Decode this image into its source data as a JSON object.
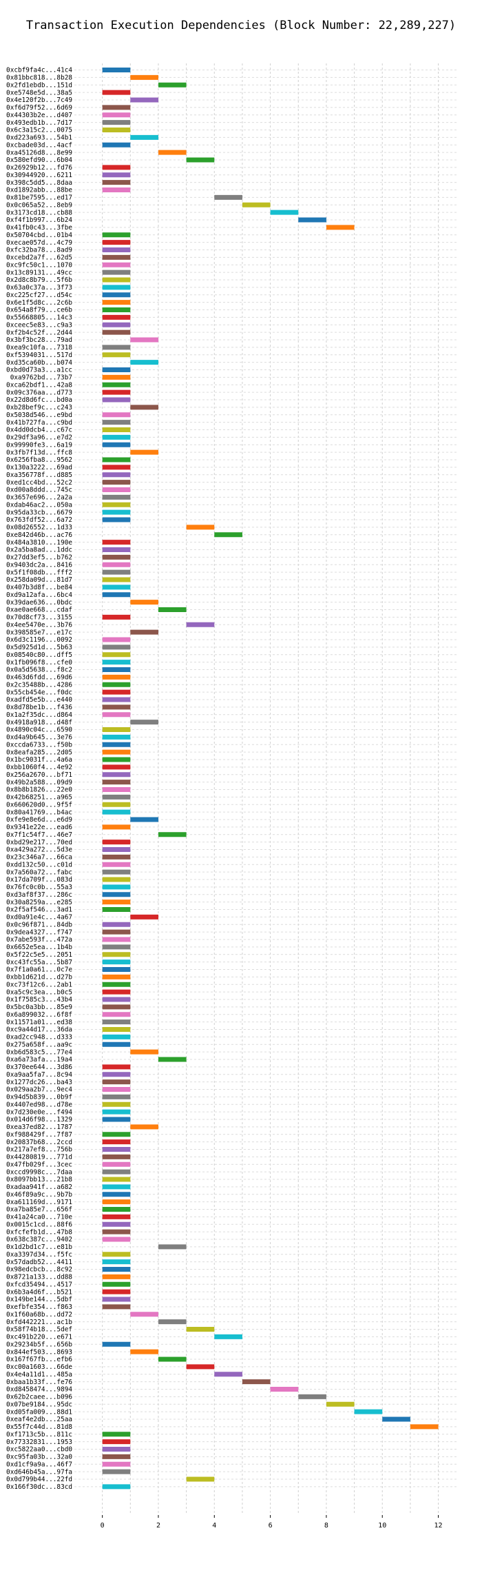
{
  "chart_data": {
    "type": "bar",
    "orientation": "horizontal",
    "title": "Transaction Execution Dependencies (Block Number: 22,289,227)",
    "xlabel": "",
    "ylabel": "",
    "xlim": [
      -1,
      12.7
    ],
    "xticks": [
      0,
      2,
      4,
      6,
      8,
      10,
      12
    ],
    "grid": true,
    "legend": "none",
    "palette": [
      "#1f77b4",
      "#ff7f0e",
      "#2ca02c",
      "#d62728",
      "#9467bd",
      "#8c564b",
      "#e377c2",
      "#7f7f7f",
      "#bcbd22",
      "#17becf"
    ],
    "rows": [
      {
        "label": "0xcbf9fa4c...41c4",
        "start": 0
      },
      {
        "label": "0x81bbc818...8b28",
        "start": 1
      },
      {
        "label": "0x2fd1ebdb...151d",
        "start": 2
      },
      {
        "label": "0xe5748e5d...38a5",
        "start": 0
      },
      {
        "label": "0x4e120f2b...7c49",
        "start": 1
      },
      {
        "label": "0xf6d79f52...6d69",
        "start": 0
      },
      {
        "label": "0x44303b2e...d407",
        "start": 0
      },
      {
        "label": "0x493edb1b...7d17",
        "start": 0
      },
      {
        "label": "0x6c3a15c2...0075",
        "start": 0
      },
      {
        "label": "0xd223a693...54b1",
        "start": 1
      },
      {
        "label": "0xcbade03d...4acf",
        "start": 0
      },
      {
        "label": "0xa45126d8...8e99",
        "start": 2
      },
      {
        "label": "0x580efd90...6b04",
        "start": 3
      },
      {
        "label": "0x26929b12...fd76",
        "start": 0
      },
      {
        "label": "0x30944920...6211",
        "start": 0
      },
      {
        "label": "0x398c5dd5...8daa",
        "start": 0
      },
      {
        "label": "0xd1892abb...88be",
        "start": 0
      },
      {
        "label": "0x81be7595...ed17",
        "start": 4
      },
      {
        "label": "0x0c065a52...8eb9",
        "start": 5
      },
      {
        "label": "0x3173cd18...cb88",
        "start": 6
      },
      {
        "label": "0xf4f1b997...6b24",
        "start": 7
      },
      {
        "label": "0x41fb0c43...3fbe",
        "start": 8
      },
      {
        "label": "0x50704cbd...01b4",
        "start": 0
      },
      {
        "label": "0xecae057d...4c79",
        "start": 0
      },
      {
        "label": "0xfc32ba78...8ad9",
        "start": 0
      },
      {
        "label": "0xcebd2a7f...62d5",
        "start": 0
      },
      {
        "label": "0xc9fc50c1...1070",
        "start": 0
      },
      {
        "label": "0x13c89131...49cc",
        "start": 0
      },
      {
        "label": "0x2d8c8b79...5f6b",
        "start": 0
      },
      {
        "label": "0x63a0c37a...3f73",
        "start": 0
      },
      {
        "label": "0xc225cf27...d54c",
        "start": 0
      },
      {
        "label": "0x6e1f5d8c...2c6b",
        "start": 0
      },
      {
        "label": "0x654a8f79...ce6b",
        "start": 0
      },
      {
        "label": "0x55668805...14c3",
        "start": 0
      },
      {
        "label": "0xceec5e83...c9a3",
        "start": 0
      },
      {
        "label": "0xf2b4c52f...2d44",
        "start": 0
      },
      {
        "label": "0x3bf3bc28...79ad",
        "start": 1
      },
      {
        "label": "0xea9c10fa...7318",
        "start": 0
      },
      {
        "label": "0xf5394031...517d",
        "start": 0
      },
      {
        "label": "0xd35ca60b...b074",
        "start": 1
      },
      {
        "label": "0xbd0d73a3...a1cc",
        "start": 0
      },
      {
        "label": "0xa9762bd...73b7",
        "start": 0
      },
      {
        "label": "0xca62bdf1...42a8",
        "start": 0
      },
      {
        "label": "0x09c376aa...d773",
        "start": 0
      },
      {
        "label": "0x22d8d6fc...bd0a",
        "start": 0
      },
      {
        "label": "0xb28bef9c...c243",
        "start": 1
      },
      {
        "label": "0x5038d546...e9bd",
        "start": 0
      },
      {
        "label": "0x41b727fa...c9bd",
        "start": 0
      },
      {
        "label": "0x4dd0dcb4...c67c",
        "start": 0
      },
      {
        "label": "0x29df3a96...e7d2",
        "start": 0
      },
      {
        "label": "0x99990fe3...6a19",
        "start": 0
      },
      {
        "label": "0x3fb7f13d...ffc8",
        "start": 1
      },
      {
        "label": "0x6256fba8...9562",
        "start": 0
      },
      {
        "label": "0x130a3222...69ad",
        "start": 0
      },
      {
        "label": "0xa356778f...d885",
        "start": 0
      },
      {
        "label": "0xed1cc4bd...52c2",
        "start": 0
      },
      {
        "label": "0xd00a8ddd...745c",
        "start": 0
      },
      {
        "label": "0x3657e696...2a2a",
        "start": 0
      },
      {
        "label": "0xdab46ac2...050a",
        "start": 0
      },
      {
        "label": "0x95da33cb...6679",
        "start": 0
      },
      {
        "label": "0x763fdf52...6a72",
        "start": 0
      },
      {
        "label": "0x08d26552...1d33",
        "start": 3
      },
      {
        "label": "0xe842d46b...ac76",
        "start": 4
      },
      {
        "label": "0x484a3810...190e",
        "start": 0
      },
      {
        "label": "0x2a5ba8ad...1ddc",
        "start": 0
      },
      {
        "label": "0x27dd3ef5...b762",
        "start": 0
      },
      {
        "label": "0x9403dc2a...8416",
        "start": 0
      },
      {
        "label": "0x5f1f08db...fff2",
        "start": 0
      },
      {
        "label": "0x258da09d...81d7",
        "start": 0
      },
      {
        "label": "0x407b3d8f...be84",
        "start": 0
      },
      {
        "label": "0xd9a12afa...6bc4",
        "start": 0
      },
      {
        "label": "0x39dae636...0bdc",
        "start": 1
      },
      {
        "label": "0xae0ae668...cdaf",
        "start": 2
      },
      {
        "label": "0x70d8cf73...3155",
        "start": 0
      },
      {
        "label": "0x4ee5470e...3b76",
        "start": 3
      },
      {
        "label": "0x398585e7...e17c",
        "start": 1
      },
      {
        "label": "0x6d3c1196...0092",
        "start": 0
      },
      {
        "label": "0x5d925d1d...5b63",
        "start": 0
      },
      {
        "label": "0x08540c80...dff5",
        "start": 0
      },
      {
        "label": "0x1fb096f8...cfe0",
        "start": 0
      },
      {
        "label": "0x0a5d5638...f8c2",
        "start": 0
      },
      {
        "label": "0x463d6fdd...69d6",
        "start": 0
      },
      {
        "label": "0x2c35488b...4286",
        "start": 0
      },
      {
        "label": "0x55cb454e...f0dc",
        "start": 0
      },
      {
        "label": "0xadfd5e5b...e440",
        "start": 0
      },
      {
        "label": "0x8d78be1b...f436",
        "start": 0
      },
      {
        "label": "0x1a2f35dc...d864",
        "start": 0
      },
      {
        "label": "0x4918a918...d48f",
        "start": 1
      },
      {
        "label": "0x4890c04c...6590",
        "start": 0
      },
      {
        "label": "0xd4a9b645...3e76",
        "start": 0
      },
      {
        "label": "0xccda6733...f50b",
        "start": 0
      },
      {
        "label": "0x8eafa285...2d05",
        "start": 0
      },
      {
        "label": "0x1bc9031f...4a6a",
        "start": 0
      },
      {
        "label": "0xbb1060f4...4e92",
        "start": 0
      },
      {
        "label": "0x256a2670...bf71",
        "start": 0
      },
      {
        "label": "0x49b2a588...09d9",
        "start": 0
      },
      {
        "label": "0x8b8b1826...22e0",
        "start": 0
      },
      {
        "label": "0x42b68251...a965",
        "start": 0
      },
      {
        "label": "0x660620d0...9f5f",
        "start": 0
      },
      {
        "label": "0x80a41769...b4ac",
        "start": 0
      },
      {
        "label": "0xfe9e8e6d...e6d9",
        "start": 1
      },
      {
        "label": "0x9341e22e...ead6",
        "start": 0
      },
      {
        "label": "0x7f1c54f7...46e7",
        "start": 2
      },
      {
        "label": "0xbd29e217...70ed",
        "start": 0
      },
      {
        "label": "0xa429a272...5d3e",
        "start": 0
      },
      {
        "label": "0x23c346a7...66ca",
        "start": 0
      },
      {
        "label": "0xdd132c50...c01d",
        "start": 0
      },
      {
        "label": "0x7a560a72...fabc",
        "start": 0
      },
      {
        "label": "0x17da709f...083d",
        "start": 0
      },
      {
        "label": "0x76fc0c0b...55a3",
        "start": 0
      },
      {
        "label": "0xd3af8f37...286c",
        "start": 0
      },
      {
        "label": "0x30a8259a...e285",
        "start": 0
      },
      {
        "label": "0x2f5af546...3ad1",
        "start": 0
      },
      {
        "label": "0xd0a91e4c...4a67",
        "start": 1
      },
      {
        "label": "0x0c96f871...84db",
        "start": 0
      },
      {
        "label": "0x9dea4327...f747",
        "start": 0
      },
      {
        "label": "0x7abe593f...472a",
        "start": 0
      },
      {
        "label": "0x6652e5ea...1b4b",
        "start": 0
      },
      {
        "label": "0x5f22c5e5...2051",
        "start": 0
      },
      {
        "label": "0xc43fc55a...5b87",
        "start": 0
      },
      {
        "label": "0x7f1a0a61...0c7e",
        "start": 0
      },
      {
        "label": "0xbb1d621d...d27b",
        "start": 0
      },
      {
        "label": "0xc73f12c6...2ab1",
        "start": 0
      },
      {
        "label": "0xa5c9c3ea...b0c5",
        "start": 0
      },
      {
        "label": "0x1f7585c3...43b4",
        "start": 0
      },
      {
        "label": "0x5bc0a3bb...85e9",
        "start": 0
      },
      {
        "label": "0x6a899032...6f8f",
        "start": 0
      },
      {
        "label": "0x11571a01...ed38",
        "start": 0
      },
      {
        "label": "0xc9a44d17...36da",
        "start": 0
      },
      {
        "label": "0xad2cc948...d333",
        "start": 0
      },
      {
        "label": "0x275a658f...aa9c",
        "start": 0
      },
      {
        "label": "0xb6d583c5...77e4",
        "start": 1
      },
      {
        "label": "0xa6a73afa...19a4",
        "start": 2
      },
      {
        "label": "0x370ee644...3d86",
        "start": 0
      },
      {
        "label": "0xa9aa5fa7...8c94",
        "start": 0
      },
      {
        "label": "0x1277dc26...ba43",
        "start": 0
      },
      {
        "label": "0x029aa2b7...9ec4",
        "start": 0
      },
      {
        "label": "0x94d5b839...0b9f",
        "start": 0
      },
      {
        "label": "0x4407ed98...d78e",
        "start": 0
      },
      {
        "label": "0x7d230e0e...f494",
        "start": 0
      },
      {
        "label": "0x014d6f98...1329",
        "start": 0
      },
      {
        "label": "0xea37ed82...1787",
        "start": 1
      },
      {
        "label": "0xf988429f...7f87",
        "start": 0
      },
      {
        "label": "0x20837b68...2ccd",
        "start": 0
      },
      {
        "label": "0x217a7ef8...756b",
        "start": 0
      },
      {
        "label": "0x44280819...771d",
        "start": 0
      },
      {
        "label": "0x47fb029f...3cec",
        "start": 0
      },
      {
        "label": "0xccd9998c...7daa",
        "start": 0
      },
      {
        "label": "0x8097bb13...21b8",
        "start": 0
      },
      {
        "label": "0xadaa941f...a682",
        "start": 0
      },
      {
        "label": "0x46f89a9c...9b7b",
        "start": 0
      },
      {
        "label": "0xa611169d...9171",
        "start": 0
      },
      {
        "label": "0xa7ba85e7...656f",
        "start": 0
      },
      {
        "label": "0x41a24ca0...710e",
        "start": 0
      },
      {
        "label": "0x0015c1cd...88f6",
        "start": 0
      },
      {
        "label": "0xfcfefb1d...47b8",
        "start": 0
      },
      {
        "label": "0x638c387c...9402",
        "start": 0
      },
      {
        "label": "0x1d2bd1c7...e81b",
        "start": 2
      },
      {
        "label": "0xa3397d34...f5fc",
        "start": 0
      },
      {
        "label": "0x57dadb52...4411",
        "start": 0
      },
      {
        "label": "0x98edcbcb...8c92",
        "start": 0
      },
      {
        "label": "0x8721a133...dd88",
        "start": 0
      },
      {
        "label": "0xfcd35494...4517",
        "start": 0
      },
      {
        "label": "0x6b3a4d6f...b521",
        "start": 0
      },
      {
        "label": "0x149be144...5dbf",
        "start": 0
      },
      {
        "label": "0xefbfe354...f863",
        "start": 0
      },
      {
        "label": "0x1f60a68b...dd72",
        "start": 1
      },
      {
        "label": "0xfd442221...ac1b",
        "start": 2
      },
      {
        "label": "0x58f74b18...5def",
        "start": 3
      },
      {
        "label": "0xc491b220...e671",
        "start": 4
      },
      {
        "label": "0x29234b5f...656b",
        "start": 0
      },
      {
        "label": "0x844ef503...8693",
        "start": 1
      },
      {
        "label": "0x167f67fb...efb6",
        "start": 2
      },
      {
        "label": "0xc00a1603...66de",
        "start": 3
      },
      {
        "label": "0x4e4a11d1...485a",
        "start": 4
      },
      {
        "label": "0xbaa1b33f...fe76",
        "start": 5
      },
      {
        "label": "0xd8458474...9894",
        "start": 6
      },
      {
        "label": "0x62b2caee...b096",
        "start": 7
      },
      {
        "label": "0x07be9184...95dc",
        "start": 8
      },
      {
        "label": "0xd05fa009...88d1",
        "start": 9
      },
      {
        "label": "0xeaf4e2db...25aa",
        "start": 10
      },
      {
        "label": "0x55f7c44d...81d8",
        "start": 11
      },
      {
        "label": "0xf1713c5b...811c",
        "start": 0
      },
      {
        "label": "0x77332831...1953",
        "start": 0
      },
      {
        "label": "0xc5822aa0...cbd0",
        "start": 0
      },
      {
        "label": "0xc95fa03b...32a0",
        "start": 0
      },
      {
        "label": "0xd1cf9a9a...46f7",
        "start": 0
      },
      {
        "label": "0xd646b45a...97fa",
        "start": 0
      },
      {
        "label": "0x0d799b44...22fd",
        "start": 3
      },
      {
        "label": "0x166f30dc...83cd",
        "start": 0
      }
    ]
  }
}
